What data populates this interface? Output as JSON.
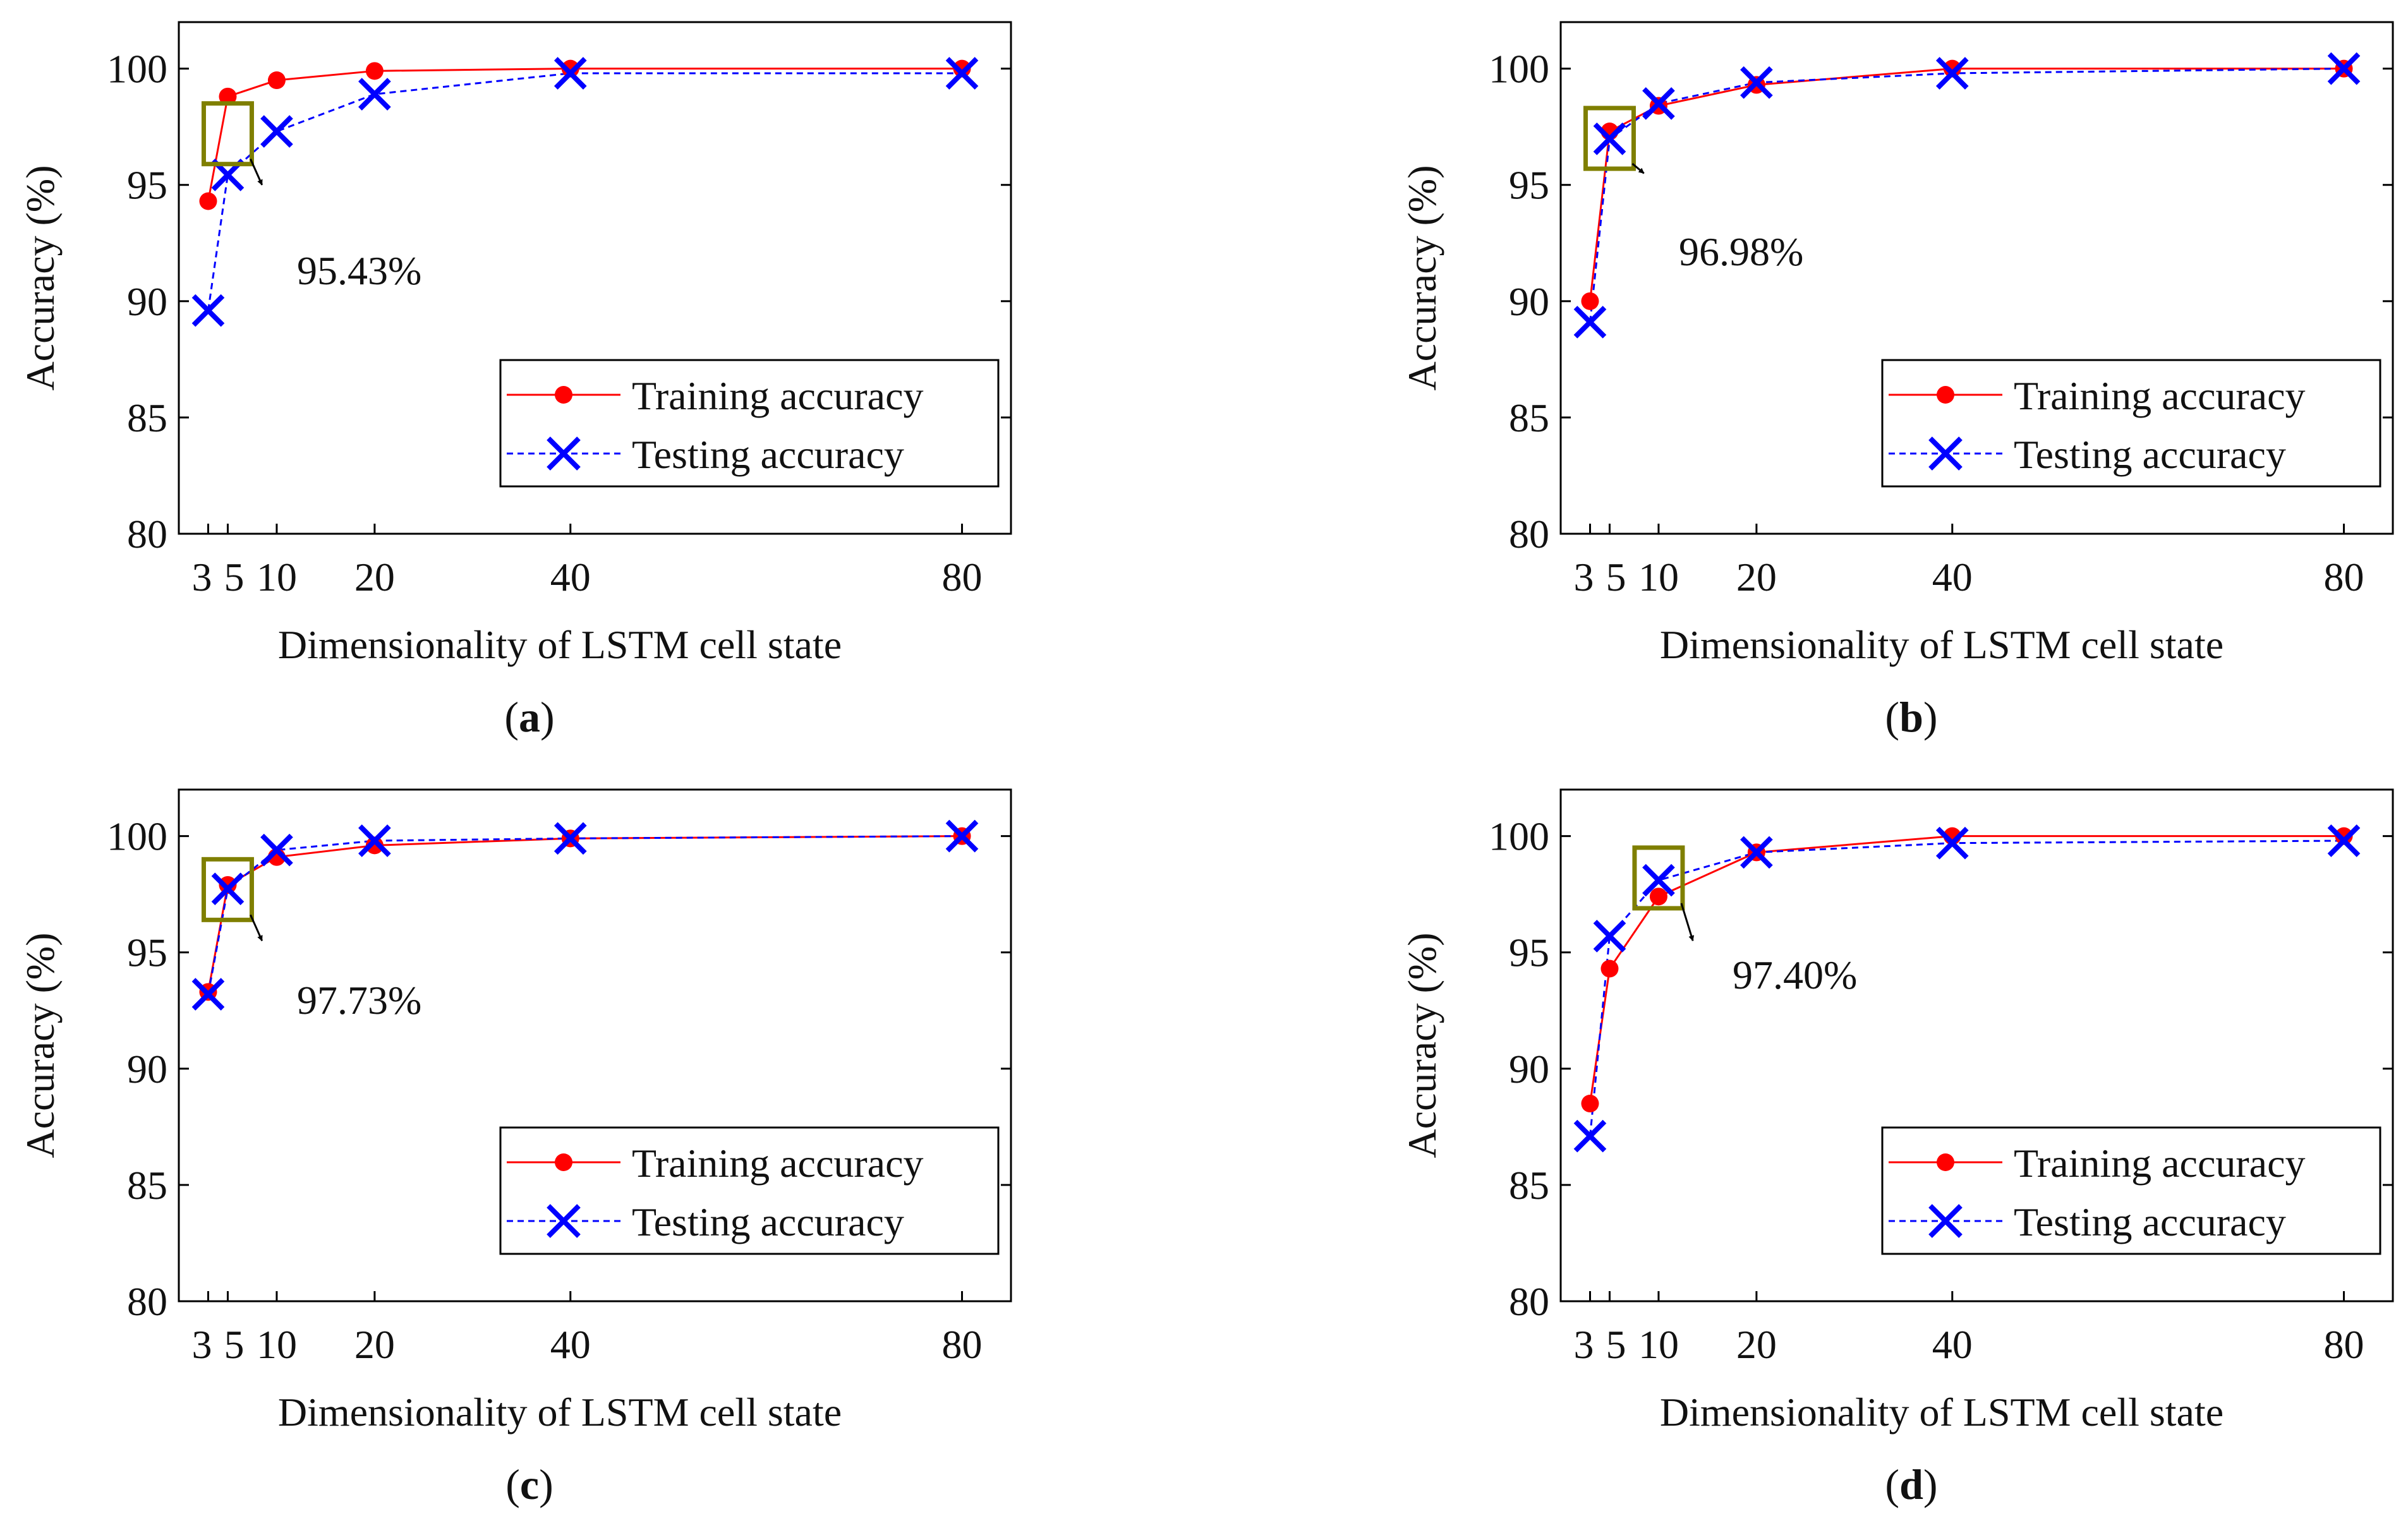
{
  "colors": {
    "training": "#ff0000",
    "testing": "#0000ff",
    "highlight_box": "#7f7f00",
    "arrow": "#000000",
    "axis": "#000000"
  },
  "chart_data": [
    {
      "id": "a",
      "type": "line",
      "caption": "a",
      "xlabel": "Dimensionality of  LSTM cell state",
      "ylabel": "Accuracy (%)",
      "x": [
        3,
        5,
        10,
        20,
        40,
        80
      ],
      "x_tick_labels": [
        "3",
        "5",
        "10",
        "20",
        "40",
        "80"
      ],
      "xlim": [
        0,
        85
      ],
      "ylim": [
        80,
        102
      ],
      "y_ticks": [
        80,
        85,
        90,
        95,
        100
      ],
      "y_tick_labels": [
        "80",
        "85",
        "90",
        "95",
        "100"
      ],
      "series": [
        {
          "name": "Training accuracy",
          "marker": "dot",
          "values": [
            94.3,
            98.8,
            99.5,
            99.9,
            100.0,
            100.0
          ]
        },
        {
          "name": "Testing accuracy",
          "marker": "x",
          "values": [
            89.6,
            95.43,
            97.3,
            98.9,
            99.8,
            99.8
          ]
        }
      ],
      "highlight": {
        "x": 5,
        "y": 97.2
      },
      "annotation": {
        "text": "95.43%",
        "x": 8.5,
        "y": 95.0
      },
      "legend_position": "bottom-right"
    },
    {
      "id": "b",
      "type": "line",
      "caption": "b",
      "xlabel": "Dimensionality of  LSTM cell state",
      "ylabel": "Accuracy (%)",
      "x": [
        3,
        5,
        10,
        20,
        40,
        80
      ],
      "x_tick_labels": [
        "3",
        "5",
        "10",
        "20",
        "40",
        "80"
      ],
      "xlim": [
        0,
        85
      ],
      "ylim": [
        80,
        102
      ],
      "y_ticks": [
        80,
        85,
        90,
        95,
        100
      ],
      "y_tick_labels": [
        "80",
        "85",
        "90",
        "95",
        "100"
      ],
      "series": [
        {
          "name": "Training accuracy",
          "marker": "dot",
          "values": [
            90.0,
            97.3,
            98.4,
            99.3,
            100.0,
            100.0
          ]
        },
        {
          "name": "Testing accuracy",
          "marker": "x",
          "values": [
            89.1,
            96.98,
            98.5,
            99.4,
            99.8,
            100.0
          ]
        }
      ],
      "highlight": {
        "x": 5,
        "y": 97.0
      },
      "annotation": {
        "text": "96.98%",
        "x": 8.5,
        "y": 95.5
      },
      "legend_position": "bottom-right"
    },
    {
      "id": "c",
      "type": "line",
      "caption": "c",
      "xlabel": "Dimensionality of  LSTM cell state",
      "ylabel": "Accuracy (%)",
      "x": [
        3,
        5,
        10,
        20,
        40,
        80
      ],
      "x_tick_labels": [
        "3",
        "5",
        "10",
        "20",
        "40",
        "80"
      ],
      "xlim": [
        0,
        85
      ],
      "ylim": [
        80,
        102
      ],
      "y_ticks": [
        80,
        85,
        90,
        95,
        100
      ],
      "y_tick_labels": [
        "80",
        "85",
        "90",
        "95",
        "100"
      ],
      "series": [
        {
          "name": "Training accuracy",
          "marker": "dot",
          "values": [
            93.3,
            97.9,
            99.1,
            99.6,
            99.9,
            100.0
          ]
        },
        {
          "name": "Testing accuracy",
          "marker": "x",
          "values": [
            93.2,
            97.73,
            99.4,
            99.8,
            99.9,
            100.0
          ]
        }
      ],
      "highlight": {
        "x": 5,
        "y": 97.7
      },
      "annotation": {
        "text": "97.73%",
        "x": 8.5,
        "y": 95.5
      },
      "legend_position": "bottom-right"
    },
    {
      "id": "d",
      "type": "line",
      "caption": "d",
      "xlabel": "Dimensionality of  LSTM cell state",
      "ylabel": "Accuracy (%)",
      "x": [
        3,
        5,
        10,
        20,
        40,
        80
      ],
      "x_tick_labels": [
        "3",
        "5",
        "10",
        "20",
        "40",
        "80"
      ],
      "xlim": [
        0,
        85
      ],
      "ylim": [
        80,
        102
      ],
      "y_ticks": [
        80,
        85,
        90,
        95,
        100
      ],
      "y_tick_labels": [
        "80",
        "85",
        "90",
        "95",
        "100"
      ],
      "series": [
        {
          "name": "Training accuracy",
          "marker": "dot",
          "values": [
            88.5,
            94.3,
            97.4,
            99.3,
            100.0,
            100.0
          ]
        },
        {
          "name": "Testing accuracy",
          "marker": "x",
          "values": [
            87.1,
            95.7,
            98.1,
            99.3,
            99.7,
            99.8
          ]
        }
      ],
      "highlight": {
        "x": 10,
        "y": 98.2
      },
      "annotation": {
        "text": "97.40%",
        "x": 13.5,
        "y": 95.5
      },
      "legend_position": "bottom-right"
    }
  ]
}
